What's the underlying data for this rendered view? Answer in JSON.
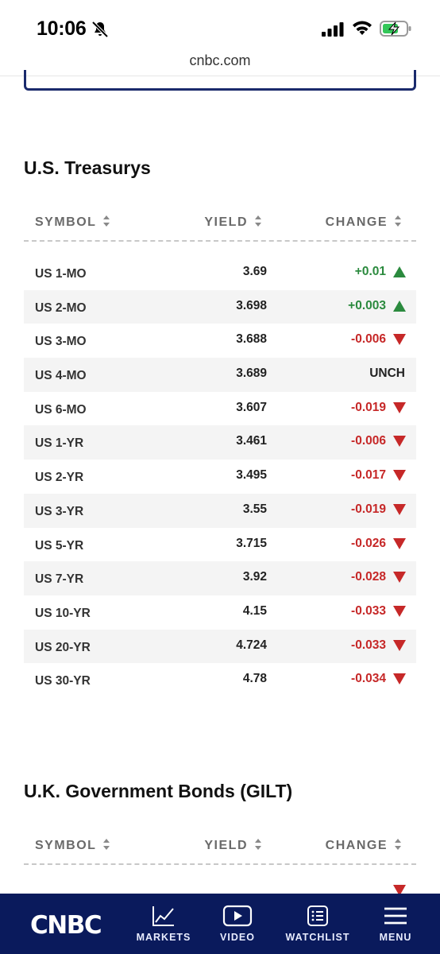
{
  "status_bar": {
    "time": "10:06"
  },
  "browser": {
    "url": "cnbc.com"
  },
  "treasurys": {
    "title": "U.S. Treasurys",
    "headers": {
      "symbol": "SYMBOL",
      "yield": "YIELD",
      "change": "CHANGE"
    },
    "rows": [
      {
        "symbol": "US 1-MO",
        "yield": "3.69",
        "change": "+0.01",
        "direction": "up"
      },
      {
        "symbol": "US 2-MO",
        "yield": "3.698",
        "change": "+0.003",
        "direction": "up"
      },
      {
        "symbol": "US 3-MO",
        "yield": "3.688",
        "change": "-0.006",
        "direction": "down"
      },
      {
        "symbol": "US 4-MO",
        "yield": "3.689",
        "change": "UNCH",
        "direction": "none"
      },
      {
        "symbol": "US 6-MO",
        "yield": "3.607",
        "change": "-0.019",
        "direction": "down"
      },
      {
        "symbol": "US 1-YR",
        "yield": "3.461",
        "change": "-0.006",
        "direction": "down"
      },
      {
        "symbol": "US 2-YR",
        "yield": "3.495",
        "change": "-0.017",
        "direction": "down"
      },
      {
        "symbol": "US 3-YR",
        "yield": "3.55",
        "change": "-0.019",
        "direction": "down"
      },
      {
        "symbol": "US 5-YR",
        "yield": "3.715",
        "change": "-0.026",
        "direction": "down"
      },
      {
        "symbol": "US 7-YR",
        "yield": "3.92",
        "change": "-0.028",
        "direction": "down"
      },
      {
        "symbol": "US 10-YR",
        "yield": "4.15",
        "change": "-0.033",
        "direction": "down"
      },
      {
        "symbol": "US 20-YR",
        "yield": "4.724",
        "change": "-0.033",
        "direction": "down"
      },
      {
        "symbol": "US 30-YR",
        "yield": "4.78",
        "change": "-0.034",
        "direction": "down"
      }
    ]
  },
  "gilt": {
    "title": "U.K. Government Bonds (GILT)",
    "headers": {
      "symbol": "SYMBOL",
      "yield": "YIELD",
      "change": "CHANGE"
    }
  },
  "bottom_nav": {
    "logo": "CNBC",
    "items": [
      {
        "label": "MARKETS",
        "icon": "chart-line-icon"
      },
      {
        "label": "VIDEO",
        "icon": "play-icon"
      },
      {
        "label": "WATCHLIST",
        "icon": "list-icon"
      },
      {
        "label": "MENU",
        "icon": "hamburger-icon"
      }
    ]
  },
  "colors": {
    "up": "#2b8a3e",
    "down": "#c62828",
    "nav_bg": "#0a1a5c"
  }
}
